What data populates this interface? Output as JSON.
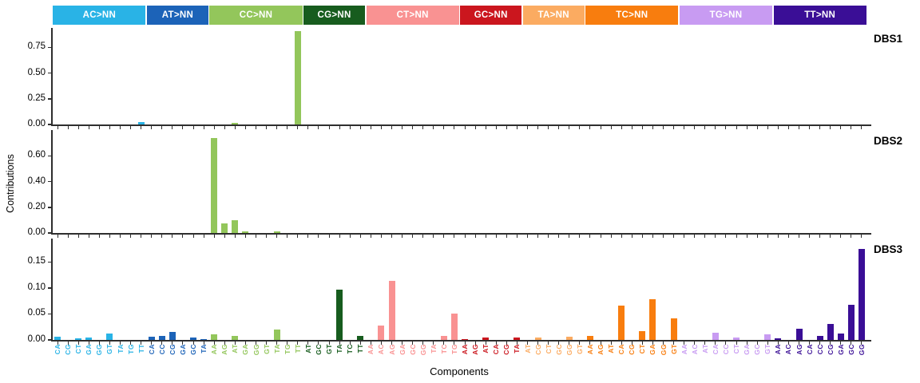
{
  "y_axis_title": "Contributions",
  "x_axis_title": "Components",
  "chart_data": {
    "type": "bar",
    "title": "",
    "xlabel": "Components",
    "ylabel": "Contributions",
    "legend_position": "top",
    "grid": false,
    "groups": [
      {
        "label": "AC>NN",
        "color": "#29b3e6",
        "components": [
          "CA",
          "CG",
          "CT",
          "GA",
          "GG",
          "GT",
          "TA",
          "TG",
          "TT"
        ]
      },
      {
        "label": "AT>NN",
        "color": "#1c63b8",
        "components": [
          "CA",
          "CC",
          "CG",
          "GA",
          "GC",
          "TA"
        ]
      },
      {
        "label": "CC>NN",
        "color": "#93c65b",
        "components": [
          "AA",
          "AG",
          "AT",
          "GA",
          "GG",
          "GT",
          "TA",
          "TG",
          "TT"
        ]
      },
      {
        "label": "CG>NN",
        "color": "#175c1e",
        "components": [
          "AT",
          "GC",
          "GT",
          "TA",
          "TC",
          "TT"
        ]
      },
      {
        "label": "CT>NN",
        "color": "#f99292",
        "components": [
          "AA",
          "AC",
          "AG",
          "GA",
          "GC",
          "GG",
          "TA",
          "TC",
          "TG"
        ]
      },
      {
        "label": "GC>NN",
        "color": "#cb161e",
        "components": [
          "AA",
          "AG",
          "AT",
          "CA",
          "CG",
          "TA"
        ]
      },
      {
        "label": "TA>NN",
        "color": "#fbab61",
        "components": [
          "AT",
          "CG",
          "CT",
          "GC",
          "GG",
          "GT"
        ]
      },
      {
        "label": "TC>NN",
        "color": "#f87d0e",
        "components": [
          "AA",
          "AG",
          "AT",
          "CA",
          "CG",
          "CT",
          "GA",
          "GG",
          "GT"
        ]
      },
      {
        "label": "TG>NN",
        "color": "#c89bf2",
        "components": [
          "AA",
          "AC",
          "AT",
          "CA",
          "CC",
          "CT",
          "GA",
          "GC",
          "GT"
        ]
      },
      {
        "label": "TT>NN",
        "color": "#3a0e96",
        "components": [
          "AA",
          "AC",
          "AG",
          "CA",
          "CC",
          "CG",
          "GA",
          "GC",
          "GG"
        ]
      }
    ],
    "panels": [
      {
        "label": "DBS1",
        "ymax": 0.94,
        "yticks": [
          0,
          0.25,
          0.5,
          0.75
        ],
        "ytick_labels": [
          "0.00",
          "0.25",
          "0.50",
          "0.75"
        ],
        "values": [
          0,
          0,
          0,
          0,
          0,
          0,
          0,
          0,
          0.02,
          0,
          0,
          0,
          0,
          0,
          0,
          0,
          0,
          0.013,
          0,
          0,
          0,
          0,
          0,
          0.91,
          0,
          0,
          0,
          0,
          0,
          0,
          0,
          0,
          0,
          0,
          0,
          0,
          0,
          0,
          0,
          0,
          0,
          0,
          0,
          0,
          0,
          0,
          0,
          0,
          0,
          0,
          0,
          0,
          0,
          0,
          0,
          0,
          0,
          0,
          0,
          0,
          0,
          0,
          0,
          0,
          0,
          0,
          0,
          0,
          0,
          0,
          0,
          0,
          0,
          0,
          0,
          0,
          0,
          0
        ]
      },
      {
        "label": "DBS2",
        "ymax": 0.8,
        "yticks": [
          0,
          0.2,
          0.4,
          0.6
        ],
        "ytick_labels": [
          "0.00",
          "0.20",
          "0.40",
          "0.60"
        ],
        "values": [
          0,
          0,
          0,
          0,
          0,
          0,
          0,
          0,
          0,
          0,
          0,
          0,
          0,
          0,
          0,
          0.74,
          0.075,
          0.1,
          0.012,
          0,
          0,
          0.012,
          0,
          0,
          0,
          0,
          0,
          0,
          0,
          0,
          0,
          0,
          0,
          0,
          0,
          0,
          0,
          0,
          0,
          0,
          0,
          0,
          0,
          0,
          0,
          0,
          0,
          0,
          0,
          0,
          0,
          0,
          0,
          0,
          0,
          0,
          0,
          0,
          0,
          0,
          0,
          0,
          0,
          0,
          0,
          0,
          0,
          0,
          0,
          0,
          0,
          0,
          0,
          0,
          0,
          0,
          0,
          0
        ]
      },
      {
        "label": "DBS3",
        "ymax": 0.195,
        "yticks": [
          0,
          0.05,
          0.1,
          0.15
        ],
        "ytick_labels": [
          "0.00",
          "0.05",
          "0.10",
          "0.15"
        ],
        "values": [
          0.006,
          0,
          0.003,
          0.005,
          0,
          0.012,
          0,
          0,
          0,
          0.006,
          0.008,
          0.016,
          0,
          0.005,
          0.002,
          0.01,
          0,
          0.007,
          0,
          0,
          0,
          0.02,
          0,
          0,
          0,
          0,
          0,
          0.097,
          0,
          0.007,
          0,
          0.027,
          0.113,
          0,
          0,
          0,
          0,
          0.007,
          0.05,
          0.002,
          0,
          0.005,
          0,
          0,
          0.005,
          0,
          0.004,
          0,
          0,
          0.006,
          0,
          0.008,
          0,
          0,
          0.066,
          0,
          0.017,
          0.078,
          0,
          0.042,
          0,
          0,
          0,
          0.014,
          0,
          0.005,
          0,
          0,
          0.01,
          0.003,
          0,
          0.021,
          0,
          0.007,
          0.03,
          0.012,
          0.067,
          0.175
        ]
      }
    ]
  }
}
